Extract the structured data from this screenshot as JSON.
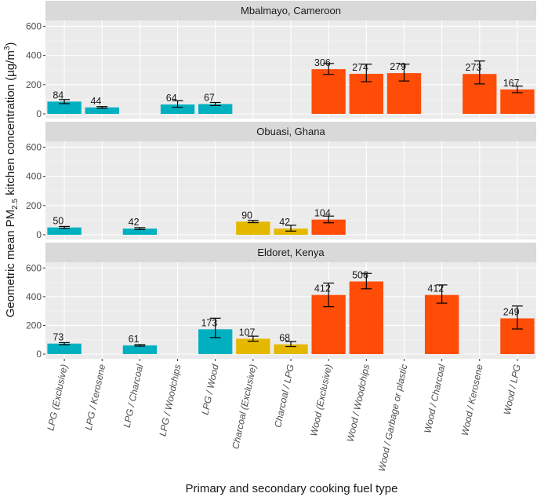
{
  "chart_data": {
    "type": "bar",
    "categories": [
      "LPG (Exclusive)",
      "LPG / Kerosene",
      "LPG / Charcoal",
      "LPG / Woodchips",
      "LPG / Wood",
      "Charcoal (Exclusive)",
      "Charcoal / LPG",
      "Wood (Exclusive)",
      "Wood / Woodchips",
      "Wood / Garbage or plastic",
      "Wood / Charcoal",
      "Wood / Kerosene",
      "Wood / LPG"
    ],
    "xlabel": "Primary and secondary cooking fuel type",
    "ylabel_main": "Geometric mean PM",
    "ylabel_sub": "2.5",
    "ylabel_rest": " kitchen concentration (µg/m",
    "ylabel_sup": "3",
    "ylabel_end": ")",
    "ylim": [
      0,
      640
    ],
    "yticks": [
      0,
      200,
      400,
      600
    ],
    "ytick_labels": [
      "0",
      "200",
      "400",
      "600"
    ],
    "colors": {
      "LPG": "#00b0c0",
      "Charcoal": "#e5b800",
      "Wood": "#ff4d08"
    },
    "panels": [
      {
        "title": "Mbalmayo, Cameroon",
        "bars": [
          {
            "category": "LPG (Exclusive)",
            "value": 84,
            "label": "84",
            "lo": 70,
            "hi": 98,
            "fuel": "LPG"
          },
          {
            "category": "LPG / Kerosene",
            "value": 44,
            "label": "44",
            "lo": 38,
            "hi": 50,
            "fuel": "LPG"
          },
          {
            "category": "LPG / Woodchips",
            "value": 64,
            "label": "64",
            "lo": 45,
            "hi": 90,
            "fuel": "LPG"
          },
          {
            "category": "LPG / Wood",
            "value": 67,
            "label": "67",
            "lo": 57,
            "hi": 78,
            "fuel": "LPG"
          },
          {
            "category": "Wood (Exclusive)",
            "value": 306,
            "label": "306",
            "lo": 270,
            "hi": 345,
            "fuel": "Wood"
          },
          {
            "category": "Wood / Woodchips",
            "value": 274,
            "label": "274",
            "lo": 220,
            "hi": 340,
            "fuel": "Wood"
          },
          {
            "category": "Wood / Garbage or plastic",
            "value": 279,
            "label": "279",
            "lo": 225,
            "hi": 340,
            "fuel": "Wood"
          },
          {
            "category": "Wood / Kerosene",
            "value": 273,
            "label": "273",
            "lo": 205,
            "hi": 362,
            "fuel": "Wood"
          },
          {
            "category": "Wood / LPG",
            "value": 167,
            "label": "167",
            "lo": 145,
            "hi": 190,
            "fuel": "Wood"
          }
        ]
      },
      {
        "title": "Obuasi, Ghana",
        "bars": [
          {
            "category": "LPG (Exclusive)",
            "value": 50,
            "label": "50",
            "lo": 44,
            "hi": 57,
            "fuel": "LPG"
          },
          {
            "category": "LPG / Charcoal",
            "value": 42,
            "label": "42",
            "lo": 36,
            "hi": 49,
            "fuel": "LPG"
          },
          {
            "category": "Charcoal (Exclusive)",
            "value": 90,
            "label": "90",
            "lo": 83,
            "hi": 98,
            "fuel": "Charcoal"
          },
          {
            "category": "Charcoal / LPG",
            "value": 42,
            "label": "42",
            "lo": 25,
            "hi": 65,
            "fuel": "Charcoal"
          },
          {
            "category": "Wood (Exclusive)",
            "value": 104,
            "label": "104",
            "lo": 82,
            "hi": 128,
            "fuel": "Wood"
          }
        ]
      },
      {
        "title": "Eldoret, Kenya",
        "bars": [
          {
            "category": "LPG (Exclusive)",
            "value": 73,
            "label": "73",
            "lo": 66,
            "hi": 80,
            "fuel": "LPG"
          },
          {
            "category": "LPG / Charcoal",
            "value": 61,
            "label": "61",
            "lo": 55,
            "hi": 66,
            "fuel": "LPG"
          },
          {
            "category": "LPG / Wood",
            "value": 173,
            "label": "173",
            "lo": 115,
            "hi": 250,
            "fuel": "LPG"
          },
          {
            "category": "Charcoal (Exclusive)",
            "value": 107,
            "label": "107",
            "lo": 90,
            "hi": 125,
            "fuel": "Charcoal"
          },
          {
            "category": "Charcoal / LPG",
            "value": 68,
            "label": "68",
            "lo": 52,
            "hi": 88,
            "fuel": "Charcoal"
          },
          {
            "category": "Wood (Exclusive)",
            "value": 412,
            "label": "412",
            "lo": 330,
            "hi": 495,
            "fuel": "Wood"
          },
          {
            "category": "Wood / Woodchips",
            "value": 506,
            "label": "506",
            "lo": 455,
            "hi": 562,
            "fuel": "Wood"
          },
          {
            "category": "Wood / Charcoal",
            "value": 412,
            "label": "412",
            "lo": 355,
            "hi": 482,
            "fuel": "Wood"
          },
          {
            "category": "Wood / LPG",
            "value": 249,
            "label": "249",
            "lo": 175,
            "hi": 335,
            "fuel": "Wood"
          }
        ]
      }
    ]
  }
}
